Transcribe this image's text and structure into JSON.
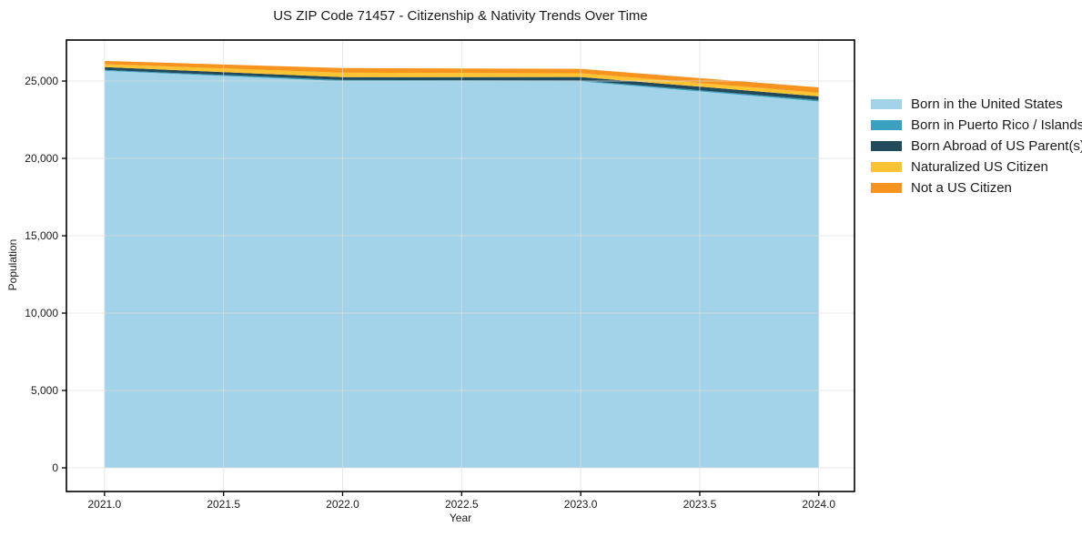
{
  "chart_data": {
    "type": "area",
    "stacked": true,
    "title": "US ZIP Code 71457 - Citizenship & Nativity Trends Over Time",
    "xlabel": "Year",
    "ylabel": "Population",
    "x": [
      2021,
      2022,
      2023,
      2024
    ],
    "series": [
      {
        "name": "Born in the United States",
        "color": "#a3d3e8",
        "values": [
          25660,
          24990,
          24970,
          23680
        ]
      },
      {
        "name": "Born in Puerto Rico / Islands",
        "color": "#3aa2c0",
        "values": [
          60,
          80,
          70,
          90
        ]
      },
      {
        "name": "Born Abroad of US Parent(s)",
        "color": "#214a5c",
        "values": [
          180,
          180,
          220,
          240
        ]
      },
      {
        "name": "Naturalized US Citizen",
        "color": "#fcc332",
        "values": [
          190,
          290,
          240,
          230
        ]
      },
      {
        "name": "Not a US Citizen",
        "color": "#f6941f",
        "values": [
          210,
          300,
          290,
          350
        ]
      }
    ],
    "xlim": [
      2020.84,
      2024.15
    ],
    "ylim": [
      -1530,
      27650
    ],
    "x_tick_values": [
      2021.0,
      2021.5,
      2022.0,
      2022.5,
      2023.0,
      2023.5,
      2024.0
    ],
    "x_tick_labels": [
      "2021.0",
      "2021.5",
      "2022.0",
      "2022.5",
      "2023.0",
      "2023.5",
      "2024.0"
    ],
    "y_tick_values": [
      0,
      5000,
      10000,
      15000,
      20000,
      25000
    ],
    "y_tick_labels": [
      "0",
      "5,000",
      "10,000",
      "15,000",
      "20,000",
      "25,000"
    ],
    "grid": true,
    "legend_position": "right"
  },
  "colors": {
    "background": "#ffffff",
    "grid": "#dedede",
    "spine": "#000000",
    "tick": "#000000",
    "text": "#1a1a1a"
  }
}
